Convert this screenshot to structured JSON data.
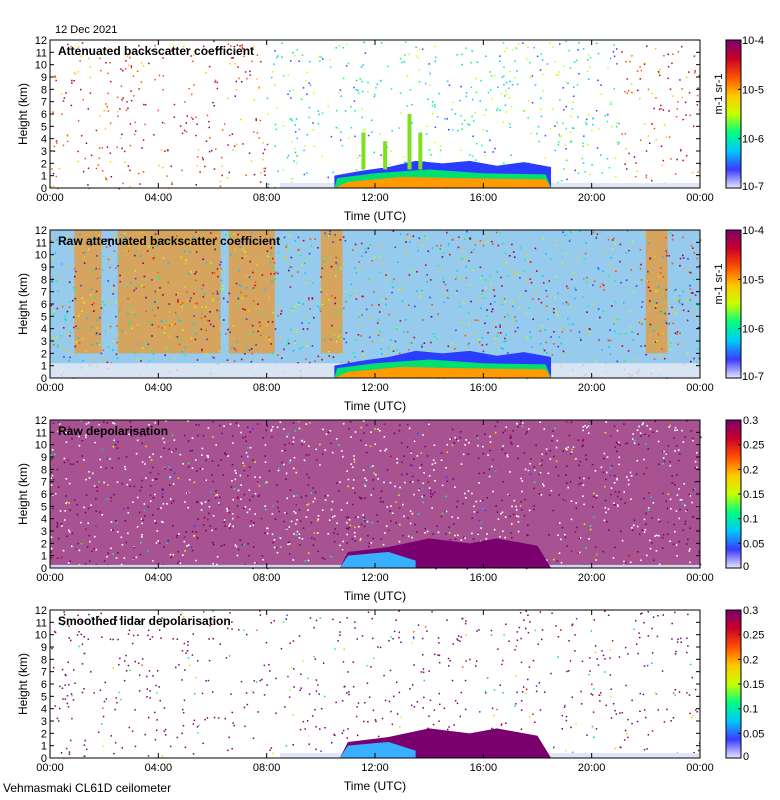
{
  "date": "12 Dec 2021",
  "footer": "Vehmasmaki CL61D ceilometer",
  "colors": {
    "background": "#ffffff",
    "axis": "#000000",
    "jet": [
      "#ffffff",
      "#3b3bff",
      "#00c8ff",
      "#00ff80",
      "#c8ff00",
      "#ffc800",
      "#ff5000",
      "#c80028",
      "#7a0070"
    ]
  },
  "chart_data": [
    {
      "type": "heatmap",
      "title": "Attenuated backscatter coefficient",
      "xlabel": "Time (UTC)",
      "ylabel": "Height (km)",
      "xticks": [
        "00:00",
        "04:00",
        "08:00",
        "12:00",
        "16:00",
        "20:00",
        "00:00"
      ],
      "yticks": [
        "0",
        "1",
        "2",
        "3",
        "4",
        "5",
        "6",
        "7",
        "8",
        "9",
        "10",
        "11",
        "12"
      ],
      "ylim": [
        0,
        12
      ],
      "colorbar": {
        "scale": "log",
        "ticks": [
          "10-4",
          "10-5",
          "10-6",
          "10-7"
        ],
        "label": "m-1 sr-1"
      }
    },
    {
      "type": "heatmap",
      "title": "Raw attenuated backscatter coefficient",
      "xlabel": "Time (UTC)",
      "ylabel": "Height (km)",
      "xticks": [
        "00:00",
        "04:00",
        "08:00",
        "12:00",
        "16:00",
        "20:00",
        "00:00"
      ],
      "yticks": [
        "0",
        "1",
        "2",
        "3",
        "4",
        "5",
        "6",
        "7",
        "8",
        "9",
        "10",
        "11",
        "12"
      ],
      "ylim": [
        0,
        12
      ],
      "colorbar": {
        "scale": "log",
        "ticks": [
          "10-4",
          "10-5",
          "10-6",
          "10-7"
        ],
        "label": "m-1 sr-1"
      }
    },
    {
      "type": "heatmap",
      "title": "Raw depolarisation",
      "xlabel": "Time (UTC)",
      "ylabel": "Height (km)",
      "xticks": [
        "00:00",
        "04:00",
        "08:00",
        "12:00",
        "16:00",
        "20:00",
        "00:00"
      ],
      "yticks": [
        "0",
        "1",
        "2",
        "3",
        "4",
        "5",
        "6",
        "7",
        "8",
        "9",
        "10",
        "11",
        "12"
      ],
      "ylim": [
        0,
        12
      ],
      "colorbar": {
        "scale": "linear",
        "ticks": [
          "0.3",
          "0.25",
          "0.2",
          "0.15",
          "0.1",
          "0.05",
          "0"
        ],
        "label": ""
      }
    },
    {
      "type": "heatmap",
      "title": "Smoothed lidar depolarisation",
      "xlabel": "Time (UTC)",
      "ylabel": "Height (km)",
      "xticks": [
        "00:00",
        "04:00",
        "08:00",
        "12:00",
        "16:00",
        "20:00",
        "00:00"
      ],
      "yticks": [
        "0",
        "1",
        "2",
        "3",
        "4",
        "5",
        "6",
        "7",
        "8",
        "9",
        "10",
        "11",
        "12"
      ],
      "ylim": [
        0,
        12
      ],
      "colorbar": {
        "scale": "linear",
        "ticks": [
          "0.3",
          "0.25",
          "0.2",
          "0.15",
          "0.1",
          "0.05",
          "0"
        ],
        "label": ""
      }
    }
  ]
}
